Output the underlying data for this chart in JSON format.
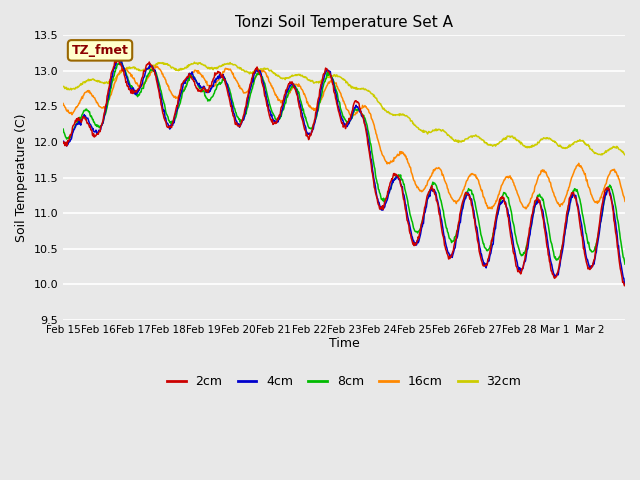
{
  "title": "Tonzi Soil Temperature Set A",
  "xlabel": "Time",
  "ylabel": "Soil Temperature (C)",
  "ylim": [
    9.5,
    13.5
  ],
  "fig_bg_color": "#e8e8e8",
  "plot_bg_color": "#e8e8e8",
  "legend_label": "TZ_fmet",
  "legend_box_color": "#ffffcc",
  "legend_box_edge": "#996600",
  "line_colors": {
    "2cm": "#cc0000",
    "4cm": "#0000cc",
    "8cm": "#00bb00",
    "16cm": "#ff8800",
    "32cm": "#cccc00"
  },
  "x_tick_labels": [
    "Feb 15",
    "Feb 16",
    "Feb 17",
    "Feb 18",
    "Feb 19",
    "Feb 20",
    "Feb 21",
    "Feb 22",
    "Feb 23",
    "Feb 24",
    "Feb 25",
    "Feb 26",
    "Feb 27",
    "Feb 28",
    "Mar 1",
    "Mar 2"
  ],
  "n_points": 960
}
